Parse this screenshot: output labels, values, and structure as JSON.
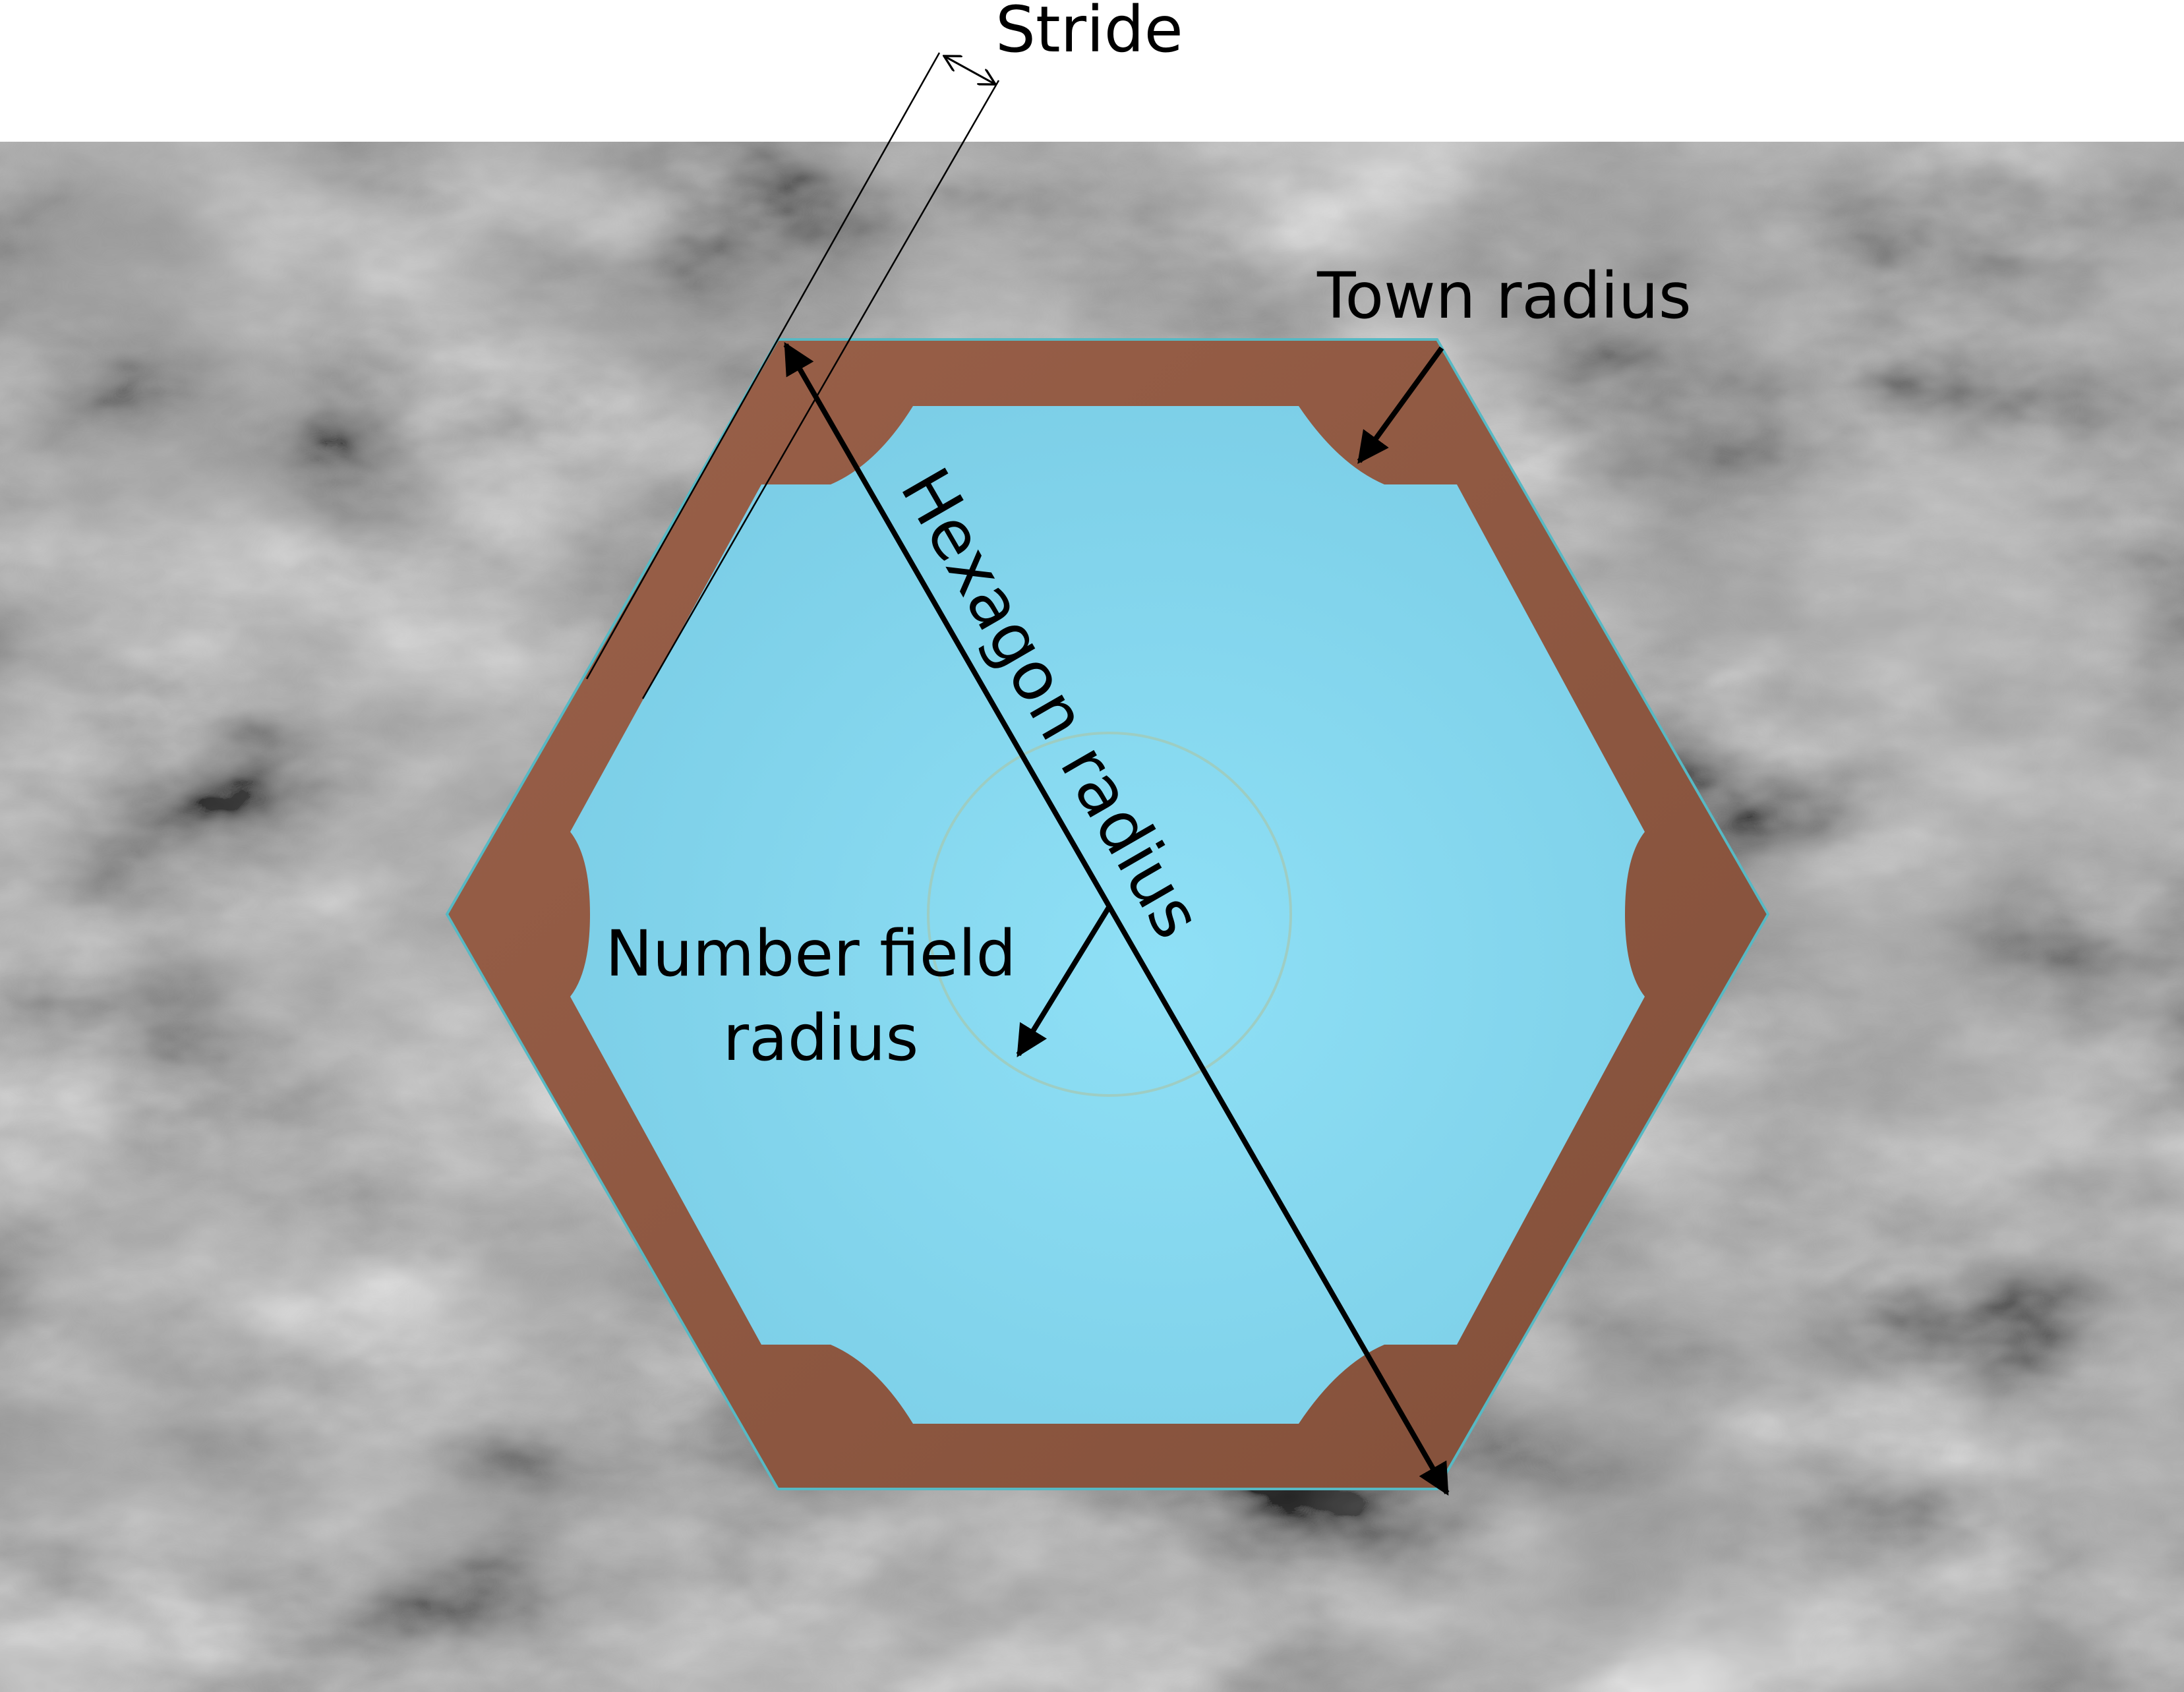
{
  "labels": {
    "stride": "Stride",
    "town_radius": "Town radius",
    "hexagon_radius": "Hexagon radius",
    "number_field_radius_line1": "Number field",
    "number_field_radius_line2": "radius"
  },
  "colors": {
    "background_top": "#ffffff",
    "terrain_dark": "#5a5a5a",
    "terrain_mid": "#9a9a9a",
    "terrain_light": "#d6d6d6",
    "town_ring": "#8e5842",
    "water": "#86d8ef",
    "number_field_ring": "#a3c9b6",
    "arrow": "#000000"
  },
  "legend_items": [
    "stride",
    "town radius",
    "hexagon radius",
    "number field radius"
  ]
}
